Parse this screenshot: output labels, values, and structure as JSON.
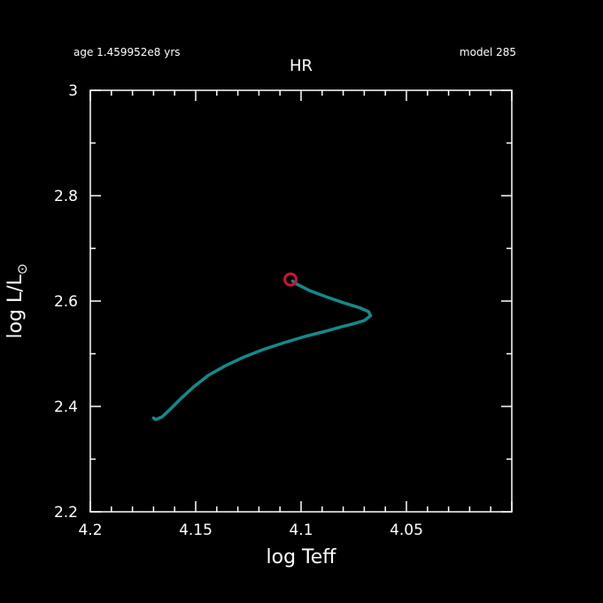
{
  "header": {
    "age_label": "age 1.459952e8 yrs",
    "model_label": "model 285"
  },
  "colors": {
    "background": "#000000",
    "axes": "#ffffff",
    "track": "#138a8a",
    "marker": "#d0103a"
  },
  "chart_data": {
    "type": "line",
    "title": "HR",
    "xlabel": "log Teff",
    "ylabel": "log L/L",
    "ylabel_symbol": "⊙",
    "xlim": [
      4.2,
      4.0
    ],
    "ylim": [
      2.2,
      3.0
    ],
    "x_ticks": [
      4.2,
      4.15,
      4.1,
      4.05
    ],
    "x_tick_labels": [
      "4.2",
      "4.15",
      "4.1",
      "4.05"
    ],
    "y_ticks": [
      2.2,
      2.4,
      2.6,
      2.8,
      3.0
    ],
    "y_tick_labels": [
      "2.2",
      "2.4",
      "2.6",
      "2.8",
      "3"
    ],
    "grid": false,
    "series": [
      {
        "x": [
          4.17,
          4.169,
          4.166,
          4.162,
          4.157,
          4.151,
          4.144,
          4.136,
          4.127,
          4.118,
          4.108,
          4.098,
          4.089,
          4.081,
          4.075,
          4.07,
          4.067,
          4.068,
          4.072,
          4.08,
          4.088,
          4.096,
          4.102,
          4.104
        ],
        "y": [
          2.378,
          2.375,
          2.38,
          2.395,
          2.415,
          2.437,
          2.459,
          2.477,
          2.494,
          2.508,
          2.521,
          2.533,
          2.542,
          2.551,
          2.557,
          2.563,
          2.572,
          2.58,
          2.587,
          2.597,
          2.608,
          2.62,
          2.632,
          2.638
        ]
      }
    ],
    "current_point": {
      "x": 4.105,
      "y": 2.641
    }
  }
}
